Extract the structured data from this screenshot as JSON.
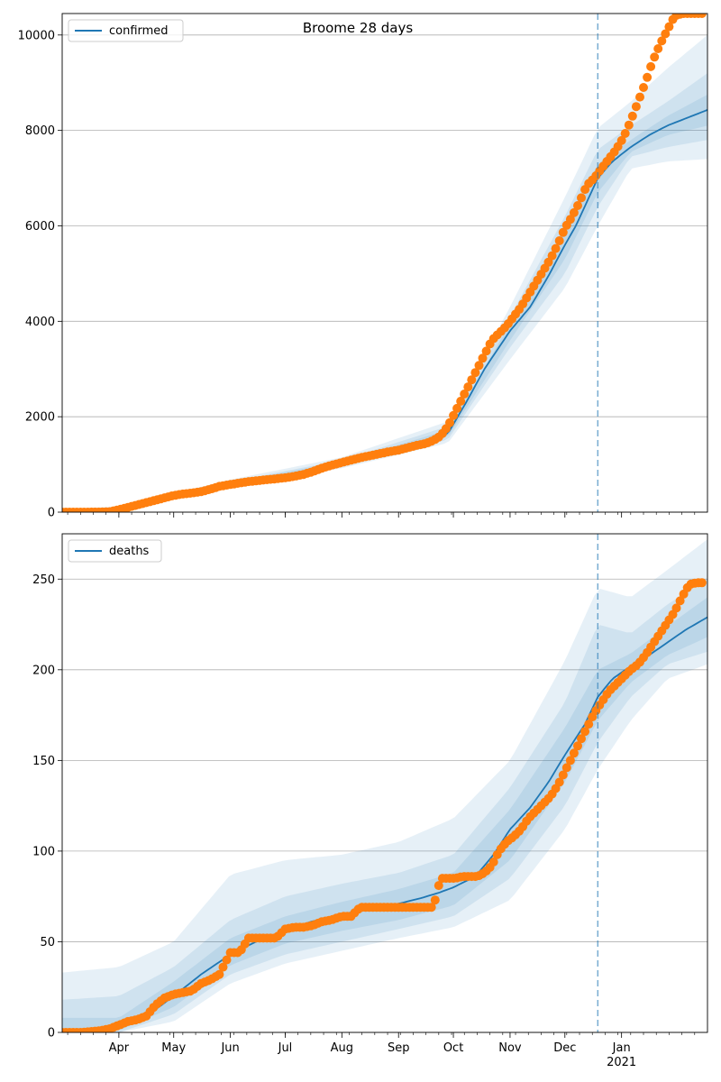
{
  "title": "Broome 28 days",
  "colors": {
    "model_line": "#1f77b4",
    "band": "#1f77b4",
    "observed": "#ff7f0e",
    "forecast_marker": "#1f77b4",
    "grid": "#b0b0b0"
  },
  "x_axis": {
    "domain_days": [
      -31,
      322
    ],
    "ticks": [
      {
        "label": "Apr",
        "day": 0
      },
      {
        "label": "May",
        "day": 30
      },
      {
        "label": "Jun",
        "day": 61
      },
      {
        "label": "Jul",
        "day": 91
      },
      {
        "label": "Aug",
        "day": 122
      },
      {
        "label": "Sep",
        "day": 153
      },
      {
        "label": "Oct",
        "day": 183
      },
      {
        "label": "Nov",
        "day": 214
      },
      {
        "label": "Dec",
        "day": 244
      },
      {
        "label": "Jan",
        "day": 275
      }
    ],
    "year_label": "2021",
    "forecast_start_day": 262
  },
  "chart_data": [
    {
      "type": "line",
      "legend": "confirmed",
      "legend_position": "upper left",
      "grid": "y",
      "ylim": [
        0,
        10450
      ],
      "yticks": [
        0,
        2000,
        4000,
        6000,
        8000,
        10000
      ],
      "model_median": {
        "x": [
          -31,
          -10,
          0,
          15,
          30,
          45,
          61,
          75,
          91,
          105,
          122,
          135,
          153,
          170,
          180,
          190,
          200,
          214,
          225,
          235,
          244,
          250,
          262,
          270,
          280,
          290,
          300,
          310,
          322
        ],
        "y": [
          0,
          5,
          60,
          180,
          330,
          460,
          590,
          650,
          710,
          830,
          1020,
          1130,
          1270,
          1450,
          1650,
          2300,
          3000,
          3800,
          4300,
          4950,
          5600,
          6000,
          7000,
          7350,
          7650,
          7900,
          8100,
          8250,
          8430
        ]
      },
      "bands": [
        {
          "level": "outer",
          "x": [
            -31,
            0,
            61,
            122,
            180,
            214,
            244,
            262,
            280,
            300,
            322
          ],
          "lo": [
            0,
            40,
            520,
            920,
            1450,
            3200,
            4700,
            6000,
            7200,
            7350,
            7400
          ],
          "hi": [
            60,
            120,
            680,
            1150,
            1900,
            4300,
            6600,
            8050,
            8600,
            9300,
            10000
          ]
        },
        {
          "level": "middle",
          "x": [
            -31,
            0,
            61,
            122,
            180,
            214,
            244,
            262,
            280,
            300,
            322
          ],
          "lo": [
            0,
            50,
            550,
            960,
            1520,
            3450,
            5000,
            6400,
            7450,
            7650,
            7800
          ],
          "hi": [
            40,
            90,
            640,
            1090,
            1800,
            4100,
            6200,
            7600,
            8100,
            8600,
            9200
          ]
        },
        {
          "level": "inner",
          "x": [
            -31,
            0,
            61,
            122,
            180,
            214,
            244,
            262,
            280,
            300,
            322
          ],
          "lo": [
            0,
            55,
            570,
            990,
            1580,
            3600,
            5300,
            6700,
            7550,
            7900,
            8100
          ],
          "hi": [
            20,
            70,
            620,
            1060,
            1720,
            3950,
            5900,
            7300,
            7800,
            8300,
            8750
          ]
        }
      ],
      "observed": {
        "x": [
          -31,
          -20,
          -10,
          -5,
          0,
          5,
          10,
          15,
          20,
          25,
          30,
          35,
          40,
          45,
          50,
          55,
          61,
          66,
          71,
          76,
          81,
          86,
          91,
          96,
          101,
          106,
          111,
          116,
          122,
          127,
          132,
          137,
          142,
          147,
          153,
          158,
          163,
          168,
          172,
          176,
          180,
          184,
          188,
          192,
          196,
          200,
          204,
          208,
          212,
          216,
          220,
          224,
          228,
          232,
          236,
          240,
          244,
          248,
          252,
          256,
          260,
          264,
          268,
          272,
          276,
          280,
          284,
          288,
          292,
          296,
          300,
          304,
          308,
          312,
          316,
          320
        ],
        "y": [
          0,
          0,
          2,
          10,
          50,
          100,
          150,
          200,
          250,
          300,
          350,
          380,
          400,
          430,
          480,
          540,
          580,
          610,
          640,
          660,
          680,
          700,
          720,
          750,
          790,
          850,
          920,
          980,
          1040,
          1090,
          1140,
          1180,
          1220,
          1260,
          1300,
          1350,
          1400,
          1440,
          1500,
          1600,
          1800,
          2100,
          2400,
          2700,
          3000,
          3300,
          3600,
          3750,
          3900,
          4100,
          4300,
          4550,
          4800,
          5050,
          5300,
          5600,
          5950,
          6200,
          6500,
          6850,
          7000,
          7200,
          7400,
          7600,
          7850,
          8200,
          8600,
          9000,
          9450,
          9800,
          10100,
          10400,
          10450,
          10450,
          10450,
          10450
        ]
      }
    },
    {
      "type": "line",
      "legend": "deaths",
      "legend_position": "upper left",
      "grid": "y",
      "ylim": [
        0,
        275
      ],
      "yticks": [
        0,
        50,
        100,
        150,
        200,
        250
      ],
      "model_median": {
        "x": [
          -31,
          -15,
          0,
          15,
          30,
          45,
          61,
          75,
          91,
          105,
          122,
          135,
          153,
          165,
          175,
          183,
          195,
          205,
          214,
          225,
          235,
          244,
          255,
          262,
          270,
          280,
          290,
          300,
          310,
          322
        ],
        "y": [
          0,
          0.5,
          3,
          9,
          20,
          32,
          43,
          50,
          56,
          61,
          65,
          68,
          71,
          74,
          77,
          80,
          86,
          98,
          112,
          124,
          138,
          153,
          170,
          185,
          195,
          202,
          208,
          215,
          222,
          229
        ]
      },
      "bands": [
        {
          "level": "outer",
          "x": [
            -31,
            0,
            30,
            61,
            91,
            122,
            153,
            183,
            214,
            244,
            262,
            280,
            300,
            322
          ],
          "lo": [
            0,
            0,
            6,
            27,
            38,
            45,
            52,
            58,
            73,
            112,
            145,
            172,
            195,
            203
          ],
          "hi": [
            33,
            36,
            50,
            87,
            95,
            98,
            105,
            118,
            150,
            205,
            245,
            240,
            255,
            272
          ]
        },
        {
          "level": "middle",
          "x": [
            -31,
            0,
            30,
            61,
            91,
            122,
            153,
            183,
            214,
            244,
            262,
            280,
            300,
            322
          ],
          "lo": [
            0,
            0,
            10,
            32,
            43,
            50,
            57,
            64,
            85,
            125,
            160,
            185,
            203,
            210
          ],
          "hi": [
            18,
            20,
            36,
            62,
            75,
            82,
            88,
            98,
            135,
            182,
            225,
            220,
            236,
            250
          ]
        },
        {
          "level": "inner",
          "x": [
            -31,
            0,
            30,
            61,
            91,
            122,
            153,
            183,
            214,
            244,
            262,
            280,
            300,
            322
          ],
          "lo": [
            0,
            1,
            14,
            37,
            49,
            56,
            62,
            70,
            95,
            138,
            172,
            193,
            208,
            218
          ],
          "hi": [
            8,
            8,
            28,
            52,
            64,
            72,
            79,
            88,
            123,
            168,
            200,
            209,
            224,
            240
          ]
        }
      ],
      "observed": {
        "x": [
          -31,
          -20,
          -10,
          -5,
          0,
          5,
          10,
          15,
          20,
          25,
          30,
          35,
          40,
          45,
          50,
          55,
          61,
          66,
          71,
          76,
          81,
          86,
          91,
          96,
          101,
          106,
          111,
          116,
          122,
          127,
          132,
          137,
          142,
          147,
          153,
          158,
          163,
          168,
          172,
          176,
          180,
          184,
          188,
          192,
          196,
          200,
          204,
          208,
          212,
          216,
          220,
          224,
          228,
          232,
          236,
          240,
          244,
          248,
          252,
          256,
          260,
          264,
          268,
          272,
          276,
          280,
          284,
          288,
          292,
          296,
          300,
          304,
          308,
          312,
          316,
          320
        ],
        "y": [
          0,
          0,
          1,
          2,
          4,
          6,
          7,
          9,
          15,
          19,
          21,
          22,
          23,
          27,
          29,
          32,
          44,
          44,
          52,
          52,
          52,
          52,
          57,
          58,
          58,
          59,
          61,
          62,
          64,
          64,
          69,
          69,
          69,
          69,
          69,
          69,
          69,
          69,
          69,
          85,
          85,
          85,
          86,
          86,
          86,
          88,
          92,
          100,
          105,
          108,
          112,
          118,
          122,
          126,
          130,
          136,
          144,
          152,
          160,
          168,
          176,
          182,
          188,
          192,
          196,
          200,
          203,
          208,
          214,
          220,
          226,
          232,
          240,
          247,
          248,
          248
        ]
      }
    }
  ]
}
